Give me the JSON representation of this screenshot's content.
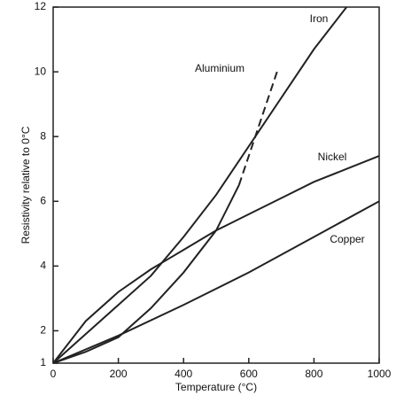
{
  "chart_data": {
    "type": "line",
    "xlabel": "Temperature (°C)",
    "ylabel": "Resistivity relative to 0°C",
    "xlim": [
      0,
      1000
    ],
    "xticks": [
      0,
      200,
      400,
      600,
      800,
      1000
    ],
    "ylim": [
      1,
      12
    ],
    "yticks": [
      1,
      2,
      4,
      6,
      8,
      10,
      12
    ],
    "color": "#222222",
    "series": [
      {
        "name": "Iron",
        "x": [
          0,
          100,
          200,
          300,
          400,
          500,
          600,
          700,
          800,
          900
        ],
        "values": [
          1,
          1.9,
          2.8,
          3.7,
          4.9,
          6.2,
          7.7,
          9.2,
          10.7,
          12
        ]
      },
      {
        "name": "Aluminium",
        "x": [
          0,
          100,
          200,
          300,
          400,
          500,
          570
        ],
        "values": [
          1,
          1.35,
          1.8,
          2.7,
          3.8,
          5.1,
          6.5
        ],
        "dashed_segment": {
          "x": [
            570,
            630,
            690
          ],
          "values": [
            6.5,
            8.3,
            10.1
          ]
        }
      },
      {
        "name": "Nickel",
        "x": [
          0,
          100,
          200,
          300,
          350,
          400,
          500,
          600,
          700,
          800,
          900,
          1000
        ],
        "values": [
          1,
          2.3,
          3.2,
          3.9,
          4.2,
          4.5,
          5.1,
          5.6,
          6.1,
          6.6,
          7.0,
          7.4
        ]
      },
      {
        "name": "Copper",
        "x": [
          0,
          200,
          400,
          600,
          800,
          1000
        ],
        "values": [
          1,
          1.85,
          2.8,
          3.8,
          4.9,
          6.0
        ]
      }
    ]
  }
}
